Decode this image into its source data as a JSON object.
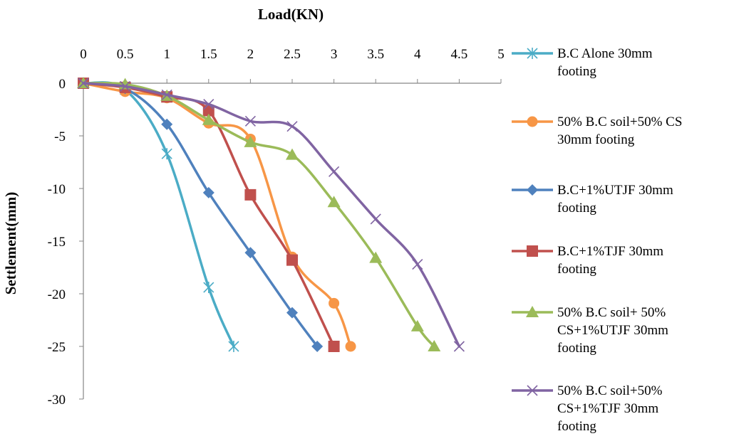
{
  "chart_data": {
    "type": "line",
    "xlabel": "Load(KN)",
    "ylabel": "Settlement(mm)",
    "xlim": [
      0,
      5
    ],
    "ylim": [
      -30,
      0
    ],
    "x_ticks": [
      "0",
      "0.5",
      "1",
      "1.5",
      "2",
      "2.5",
      "3",
      "3.5",
      "4",
      "4.5",
      "5"
    ],
    "y_ticks": [
      "0",
      "-5",
      "-10",
      "-15",
      "-20",
      "-25",
      "-30"
    ],
    "x_axis_position": "top",
    "grid": false,
    "legend_position": "right",
    "series": [
      {
        "name": "B.C Alone 30mm footing",
        "legend_lines": [
          "B.C Alone 30mm",
          "footing"
        ],
        "color": "#4BACC6",
        "marker": "asterisk",
        "points": [
          [
            0,
            0
          ],
          [
            0.5,
            -0.6
          ],
          [
            1,
            -6.7
          ],
          [
            1.5,
            -19.4
          ],
          [
            1.8,
            -25
          ]
        ]
      },
      {
        "name": "50% B.C soil+50% CS 30mm footing",
        "legend_lines": [
          "50% B.C soil+50% CS",
          "30mm footing"
        ],
        "color": "#F79646",
        "marker": "circle",
        "points": [
          [
            0,
            0
          ],
          [
            0.5,
            -0.8
          ],
          [
            1,
            -1.4
          ],
          [
            1.5,
            -3.8
          ],
          [
            2,
            -5.3
          ],
          [
            2.5,
            -16.5
          ],
          [
            3,
            -20.9
          ],
          [
            3.2,
            -25
          ]
        ]
      },
      {
        "name": "B.C+1%UTJF 30mm footing",
        "legend_lines": [
          "B.C+1%UTJF 30mm",
          "footing"
        ],
        "color": "#4F81BD",
        "marker": "diamond",
        "points": [
          [
            0,
            0
          ],
          [
            0.5,
            -0.5
          ],
          [
            1,
            -3.9
          ],
          [
            1.5,
            -10.4
          ],
          [
            2,
            -16.1
          ],
          [
            2.5,
            -21.8
          ],
          [
            2.8,
            -25
          ]
        ]
      },
      {
        "name": "B.C+1%TJF 30mm footing",
        "legend_lines": [
          "B.C+1%TJF 30mm",
          "footing"
        ],
        "color": "#C0504D",
        "marker": "square",
        "points": [
          [
            0,
            0
          ],
          [
            0.5,
            -0.4
          ],
          [
            1,
            -1.3
          ],
          [
            1.5,
            -2.6
          ],
          [
            2,
            -10.6
          ],
          [
            2.5,
            -16.8
          ],
          [
            3,
            -25
          ]
        ]
      },
      {
        "name": "50% B.C soil+ 50% CS+1%UTJF 30mm footing",
        "legend_lines": [
          "50% B.C soil+ 50%",
          "CS+1%UTJF 30mm",
          "footing"
        ],
        "color": "#9BBB59",
        "marker": "triangle",
        "points": [
          [
            0,
            0
          ],
          [
            0.5,
            -0.1
          ],
          [
            1,
            -1.2
          ],
          [
            1.5,
            -3.5
          ],
          [
            2,
            -5.6
          ],
          [
            2.5,
            -6.8
          ],
          [
            3,
            -11.3
          ],
          [
            3.5,
            -16.6
          ],
          [
            4,
            -23.1
          ],
          [
            4.2,
            -25
          ]
        ]
      },
      {
        "name": "50% B.C soil+50% CS+1%TJF 30mm footing",
        "legend_lines": [
          "50% B.C soil+50%",
          "CS+1%TJF 30mm",
          "footing"
        ],
        "color": "#8064A2",
        "marker": "x",
        "points": [
          [
            0,
            0
          ],
          [
            0.5,
            -0.3
          ],
          [
            1,
            -1.1
          ],
          [
            1.5,
            -2.0
          ],
          [
            2,
            -3.6
          ],
          [
            2.5,
            -4.1
          ],
          [
            3,
            -8.4
          ],
          [
            3.5,
            -12.9
          ],
          [
            4,
            -17.2
          ],
          [
            4.5,
            -25
          ]
        ]
      }
    ]
  }
}
